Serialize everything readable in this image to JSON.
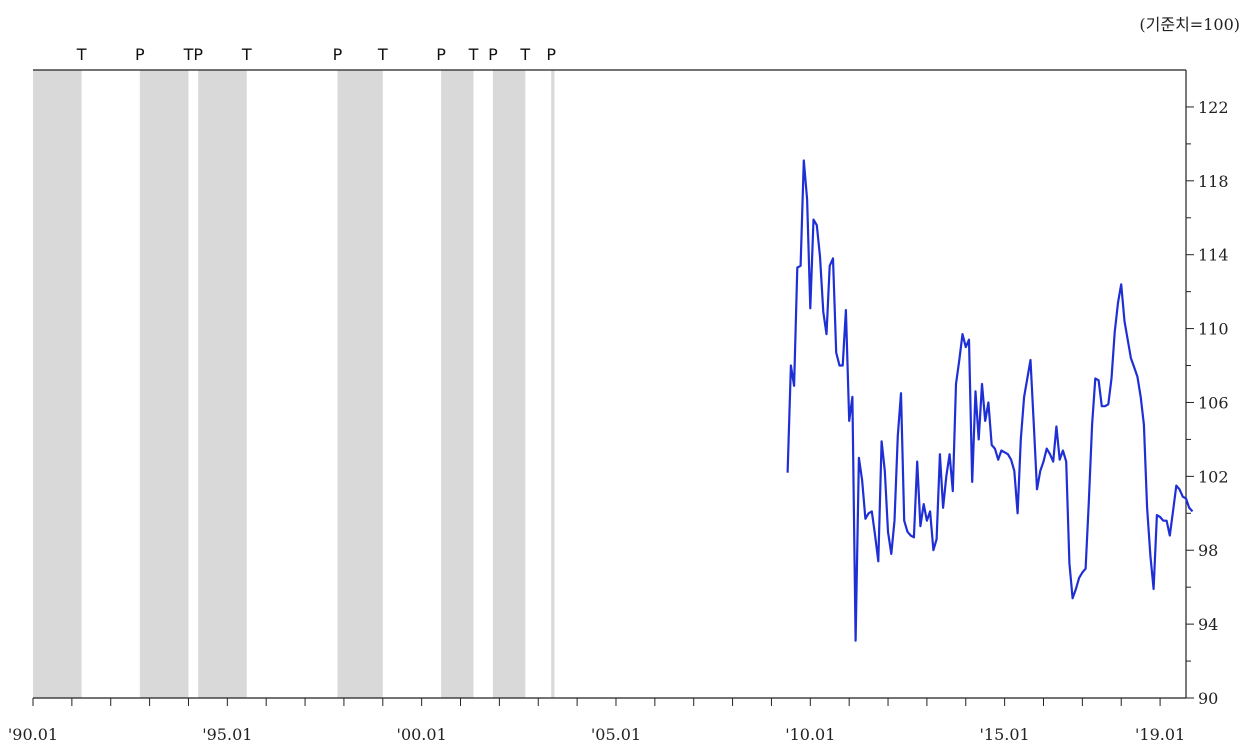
{
  "chart_data": {
    "type": "line",
    "unit_label": "(기준치=100)",
    "x_tick_labels": [
      "'90.01",
      "'95.01",
      "'00.01",
      "'05.01",
      "'10.01",
      "'15.01",
      "'19.01"
    ],
    "x_range": [
      "1990-01",
      "2019-09"
    ],
    "y_range": [
      90,
      124
    ],
    "y_ticks": [
      90,
      94,
      98,
      102,
      106,
      110,
      114,
      118,
      122
    ],
    "y_axis_side": "right",
    "grid": false,
    "legend": "none",
    "line_color": "#1f2fd6",
    "shade_color": "#d9d9d9",
    "turning_points": [
      {
        "label": "T",
        "date": "1991-04"
      },
      {
        "label": "P",
        "date": "1992-10"
      },
      {
        "label": "T",
        "date": "1994-01"
      },
      {
        "label": "P",
        "date": "1994-04"
      },
      {
        "label": "T",
        "date": "1995-07"
      },
      {
        "label": "P",
        "date": "1997-11"
      },
      {
        "label": "T",
        "date": "1999-01"
      },
      {
        "label": "P",
        "date": "2000-07"
      },
      {
        "label": "T",
        "date": "2001-05"
      },
      {
        "label": "P",
        "date": "2001-11"
      },
      {
        "label": "T",
        "date": "2002-09"
      },
      {
        "label": "P",
        "date": "2003-05"
      }
    ],
    "shaded_periods": [
      [
        "1990-01",
        "1991-04"
      ],
      [
        "1992-10",
        "1994-01"
      ],
      [
        "1994-04",
        "1995-07"
      ],
      [
        "1997-11",
        "1999-01"
      ],
      [
        "2000-07",
        "2001-05"
      ],
      [
        "2001-11",
        "2002-09"
      ],
      [
        "2003-05",
        "2003-06"
      ]
    ],
    "series": [
      {
        "points": [
          [
            "2009-06",
            102.2
          ],
          [
            "2009-07",
            108.0
          ],
          [
            "2009-08",
            106.9
          ],
          [
            "2009-09",
            113.3
          ],
          [
            "2009-10",
            113.4
          ],
          [
            "2009-11",
            119.1
          ],
          [
            "2009-12",
            117.0
          ],
          [
            "2010-01",
            111.1
          ],
          [
            "2010-02",
            115.9
          ],
          [
            "2010-03",
            115.6
          ],
          [
            "2010-04",
            113.9
          ],
          [
            "2010-05",
            110.9
          ],
          [
            "2010-06",
            109.7
          ],
          [
            "2010-07",
            113.4
          ],
          [
            "2010-08",
            113.8
          ],
          [
            "2010-09",
            108.7
          ],
          [
            "2010-10",
            108.0
          ],
          [
            "2010-11",
            108.0
          ],
          [
            "2010-12",
            111.0
          ],
          [
            "2011-01",
            105.0
          ],
          [
            "2011-02",
            106.3
          ],
          [
            "2011-03",
            93.1
          ],
          [
            "2011-04",
            103.0
          ],
          [
            "2011-05",
            101.8
          ],
          [
            "2011-06",
            99.7
          ],
          [
            "2011-07",
            100.0
          ],
          [
            "2011-08",
            100.1
          ],
          [
            "2011-09",
            98.8
          ],
          [
            "2011-10",
            97.4
          ],
          [
            "2011-11",
            103.9
          ],
          [
            "2011-12",
            102.3
          ],
          [
            "2012-01",
            99.0
          ],
          [
            "2012-02",
            97.8
          ],
          [
            "2012-03",
            99.6
          ],
          [
            "2012-04",
            104.2
          ],
          [
            "2012-05",
            106.5
          ],
          [
            "2012-06",
            99.6
          ],
          [
            "2012-07",
            99.0
          ],
          [
            "2012-08",
            98.8
          ],
          [
            "2012-09",
            98.7
          ],
          [
            "2012-10",
            102.8
          ],
          [
            "2012-11",
            99.3
          ],
          [
            "2012-12",
            100.5
          ],
          [
            "2013-01",
            99.6
          ],
          [
            "2013-02",
            100.1
          ],
          [
            "2013-03",
            98.0
          ],
          [
            "2013-04",
            98.6
          ],
          [
            "2013-05",
            103.2
          ],
          [
            "2013-06",
            100.3
          ],
          [
            "2013-07",
            102.0
          ],
          [
            "2013-08",
            103.2
          ],
          [
            "2013-09",
            101.2
          ],
          [
            "2013-10",
            107.0
          ],
          [
            "2013-11",
            108.3
          ],
          [
            "2013-12",
            109.7
          ],
          [
            "2014-01",
            109.0
          ],
          [
            "2014-02",
            109.4
          ],
          [
            "2014-03",
            101.7
          ],
          [
            "2014-04",
            106.6
          ],
          [
            "2014-05",
            104.0
          ],
          [
            "2014-06",
            107.0
          ],
          [
            "2014-07",
            105.0
          ],
          [
            "2014-08",
            106.0
          ],
          [
            "2014-09",
            103.7
          ],
          [
            "2014-10",
            103.5
          ],
          [
            "2014-11",
            102.9
          ],
          [
            "2014-12",
            103.4
          ],
          [
            "2015-01",
            103.3
          ],
          [
            "2015-02",
            103.2
          ],
          [
            "2015-03",
            102.9
          ],
          [
            "2015-04",
            102.3
          ],
          [
            "2015-05",
            100.0
          ],
          [
            "2015-06",
            104.0
          ],
          [
            "2015-07",
            106.3
          ],
          [
            "2015-08",
            107.3
          ],
          [
            "2015-09",
            108.3
          ],
          [
            "2015-10",
            104.8
          ],
          [
            "2015-11",
            101.3
          ],
          [
            "2015-12",
            102.3
          ],
          [
            "2016-01",
            102.8
          ],
          [
            "2016-02",
            103.5
          ],
          [
            "2016-03",
            103.2
          ],
          [
            "2016-04",
            102.8
          ],
          [
            "2016-05",
            104.7
          ],
          [
            "2016-06",
            102.9
          ],
          [
            "2016-07",
            103.4
          ],
          [
            "2016-08",
            102.8
          ],
          [
            "2016-09",
            97.3
          ],
          [
            "2016-10",
            95.4
          ],
          [
            "2016-11",
            95.9
          ],
          [
            "2016-12",
            96.5
          ],
          [
            "2017-01",
            96.8
          ],
          [
            "2017-02",
            97.0
          ],
          [
            "2017-03",
            100.6
          ],
          [
            "2017-04",
            104.8
          ],
          [
            "2017-05",
            107.3
          ],
          [
            "2017-06",
            107.2
          ],
          [
            "2017-07",
            105.8
          ],
          [
            "2017-08",
            105.8
          ],
          [
            "2017-09",
            105.9
          ],
          [
            "2017-10",
            107.3
          ],
          [
            "2017-11",
            109.8
          ],
          [
            "2017-12",
            111.4
          ],
          [
            "2018-01",
            112.4
          ],
          [
            "2018-02",
            110.4
          ],
          [
            "2018-03",
            109.4
          ],
          [
            "2018-04",
            108.4
          ],
          [
            "2018-05",
            107.9
          ],
          [
            "2018-06",
            107.4
          ],
          [
            "2018-07",
            106.3
          ],
          [
            "2018-08",
            104.8
          ],
          [
            "2018-09",
            100.3
          ],
          [
            "2018-10",
            97.7
          ],
          [
            "2018-11",
            95.9
          ],
          [
            "2018-12",
            99.9
          ],
          [
            "2019-01",
            99.8
          ],
          [
            "2019-02",
            99.6
          ],
          [
            "2019-03",
            99.6
          ],
          [
            "2019-04",
            98.8
          ],
          [
            "2019-05",
            100.1
          ],
          [
            "2019-06",
            101.5
          ],
          [
            "2019-07",
            101.3
          ],
          [
            "2019-08",
            100.9
          ],
          [
            "2019-09",
            100.8
          ],
          [
            "2019-10",
            100.3
          ],
          [
            "2019-11",
            100.1
          ]
        ]
      }
    ]
  }
}
